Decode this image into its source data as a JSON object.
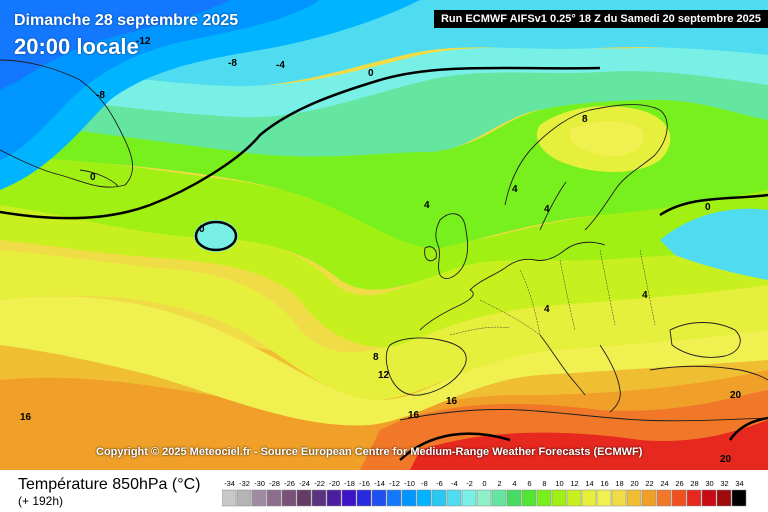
{
  "header": {
    "date": "Dimanche 28 septembre 2025",
    "time": "20:00 locale",
    "run_info": "Run ECMWF AIFSv1 0.25° 18 Z du Samedi 20 septembre 2025"
  },
  "copyright": "Copyright © 2025 Meteociel.fr - Source European Centre for Medium-Range Weather Forecasts (ECMWF)",
  "legend": {
    "title": "Température 850hPa (°C)",
    "subtitle": "(+ 192h)",
    "values": [
      "-34",
      "-32",
      "-30",
      "-28",
      "-26",
      "-24",
      "-22",
      "-20",
      "-18",
      "-16",
      "-14",
      "-12",
      "-10",
      "-8",
      "-6",
      "-4",
      "-2",
      "0",
      "2",
      "4",
      "6",
      "8",
      "10",
      "12",
      "14",
      "16",
      "18",
      "20",
      "22",
      "24",
      "26",
      "28",
      "30",
      "32",
      "34"
    ],
    "colors": [
      "#c8c8c8",
      "#b4b4b4",
      "#a08ca0",
      "#8c6e8c",
      "#785078",
      "#643c64",
      "#5a3280",
      "#4b1ea0",
      "#3c14c8",
      "#2828dc",
      "#1e50f0",
      "#1478ff",
      "#0096ff",
      "#00b4ff",
      "#28c8f0",
      "#50dcf0",
      "#78f0e6",
      "#8cf0c8",
      "#64e6a0",
      "#46dc64",
      "#50e632",
      "#78f01e",
      "#a0f014",
      "#c8f01e",
      "#e6f03c",
      "#f0f050",
      "#f0dc46",
      "#f0be32",
      "#f0a028",
      "#f07828",
      "#f0501e",
      "#e6281e",
      "#c80a14",
      "#a00a0a",
      "#000000"
    ]
  },
  "map_labels": [
    "-8",
    "-8",
    "-4",
    "0",
    "0",
    "0",
    "4",
    "4",
    "4",
    "4",
    "8",
    "8",
    "12",
    "16",
    "16",
    "16",
    "20",
    "-12",
    "0",
    "4",
    "20"
  ]
}
